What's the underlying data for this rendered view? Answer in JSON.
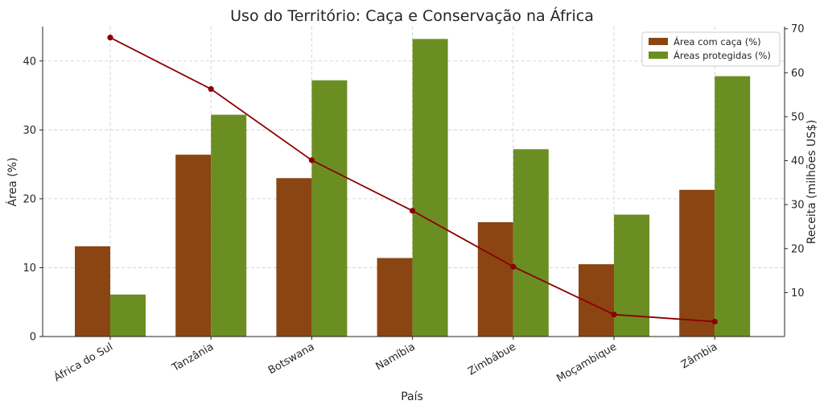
{
  "chart_data": {
    "type": "bar",
    "title": "Uso do Território: Caça e Conservação na África",
    "xlabel": "País",
    "ylabel": "Área (%)",
    "y2label": "Receita (milhões US$)",
    "categories": [
      "África do Sul",
      "Tanzânia",
      "Botswana",
      "Namíbia",
      "Zimbábue",
      "Moçambique",
      "Zâmbia"
    ],
    "series": [
      {
        "name": "Área com caça (%)",
        "type": "bar",
        "axis": "left",
        "color": "#8B4513",
        "values": [
          13.1,
          26.4,
          23.0,
          11.4,
          16.6,
          10.5,
          21.3
        ]
      },
      {
        "name": "Áreas protegidas (%)",
        "type": "bar",
        "axis": "left",
        "color": "#6B8E23",
        "values": [
          6.1,
          32.2,
          37.2,
          43.2,
          27.2,
          17.7,
          37.8
        ]
      },
      {
        "type": "line",
        "axis": "right",
        "color": "#8B0000",
        "values": [
          68.0,
          56.3,
          40.1,
          28.6,
          15.9,
          5.0,
          3.4
        ]
      }
    ],
    "ylim": [
      0,
      45
    ],
    "yticks": [
      0,
      10,
      20,
      30,
      40
    ],
    "y2lim": [
      0,
      70.5
    ],
    "y2ticks": [
      10,
      20,
      30,
      40,
      50,
      60,
      70
    ],
    "grid": true,
    "legend_position": "top-right"
  }
}
